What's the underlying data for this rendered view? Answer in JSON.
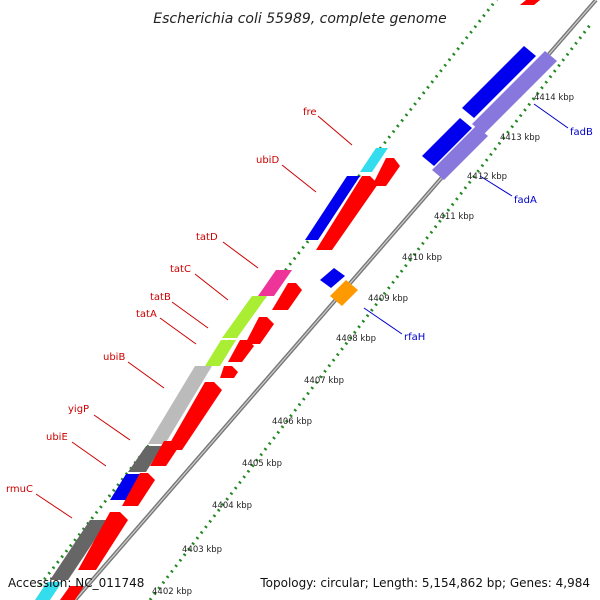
{
  "title": "Escherichia coli 55989, complete genome",
  "accession": "Accession: NC_011748",
  "summary": "Topology: circular; Length: 5,154,862 bp; Genes: 4,984",
  "ticks": [
    {
      "label": "4402 kbp"
    },
    {
      "label": "4403 kbp"
    },
    {
      "label": "4404 kbp"
    },
    {
      "label": "4405 kbp"
    },
    {
      "label": "4406 kbp"
    },
    {
      "label": "4407 kbp"
    },
    {
      "label": "4408 kbp"
    },
    {
      "label": "4409 kbp"
    },
    {
      "label": "4410 kbp"
    },
    {
      "label": "4411 kbp"
    },
    {
      "label": "4412 kbp"
    },
    {
      "label": "4413 kbp"
    },
    {
      "label": "4414 kbp"
    }
  ],
  "gene_labels": [
    {
      "label": "fre",
      "color": "#cc0000"
    },
    {
      "label": "ubiD",
      "color": "#cc0000"
    },
    {
      "label": "tatD",
      "color": "#cc0000"
    },
    {
      "label": "tatC",
      "color": "#cc0000"
    },
    {
      "label": "tatB",
      "color": "#cc0000"
    },
    {
      "label": "tatA",
      "color": "#cc0000"
    },
    {
      "label": "ubiB",
      "color": "#cc0000"
    },
    {
      "label": "yigP",
      "color": "#cc0000"
    },
    {
      "label": "ubiE",
      "color": "#cc0000"
    },
    {
      "label": "rmuC",
      "color": "#cc0000"
    },
    {
      "label": "fadB",
      "color": "#0000cc"
    },
    {
      "label": "fadA",
      "color": "#0000cc"
    },
    {
      "label": "rfaH",
      "color": "#0000cc"
    }
  ],
  "colors": {
    "cds": "#ff0000",
    "blue_feature": "#0000ee",
    "purple_feature": "#8877dd",
    "cyan_feature": "#33ddee",
    "magenta_feature": "#ee3399",
    "lime_feature": "#aaee33",
    "gray_feature": "#bbbbbb",
    "dark_gray_feature": "#666666",
    "orange_feature": "#ff9900",
    "backbone": "#888888",
    "tick_dots": "#228822"
  }
}
